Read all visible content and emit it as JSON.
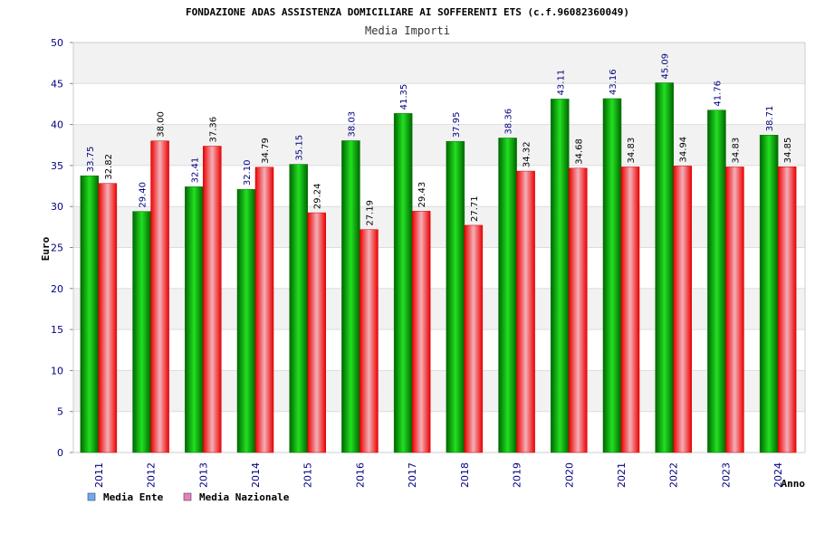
{
  "chart_data": {
    "type": "bar",
    "title": "FONDAZIONE ADAS ASSISTENZA DOMICILIARE AI SOFFERENTI ETS (c.f.96082360049)",
    "subtitle": "Media Importi",
    "ylabel": "Euro",
    "xlabel": "Anno",
    "ylim": [
      0,
      50
    ],
    "yticks": [
      0,
      5,
      10,
      15,
      20,
      25,
      30,
      35,
      40,
      45,
      50
    ],
    "categories": [
      "2011",
      "2012",
      "2013",
      "2014",
      "2015",
      "2016",
      "2017",
      "2018",
      "2019",
      "2020",
      "2021",
      "2022",
      "2023",
      "2024"
    ],
    "series": [
      {
        "name": "Media Ente",
        "color": "#00c000",
        "legend_color": "#6ea8ff",
        "values": [
          33.75,
          29.4,
          32.41,
          32.1,
          35.15,
          38.03,
          41.35,
          37.95,
          38.36,
          43.11,
          43.16,
          45.09,
          41.76,
          38.71
        ]
      },
      {
        "name": "Media Nazionale",
        "color": "#ff2020",
        "legend_color": "#e87fbf",
        "values": [
          32.82,
          38.0,
          37.36,
          34.79,
          29.24,
          27.19,
          29.43,
          27.71,
          34.32,
          34.68,
          34.83,
          34.94,
          34.83,
          34.85
        ]
      }
    ],
    "grid": true,
    "legend_position": "bottom-left"
  }
}
